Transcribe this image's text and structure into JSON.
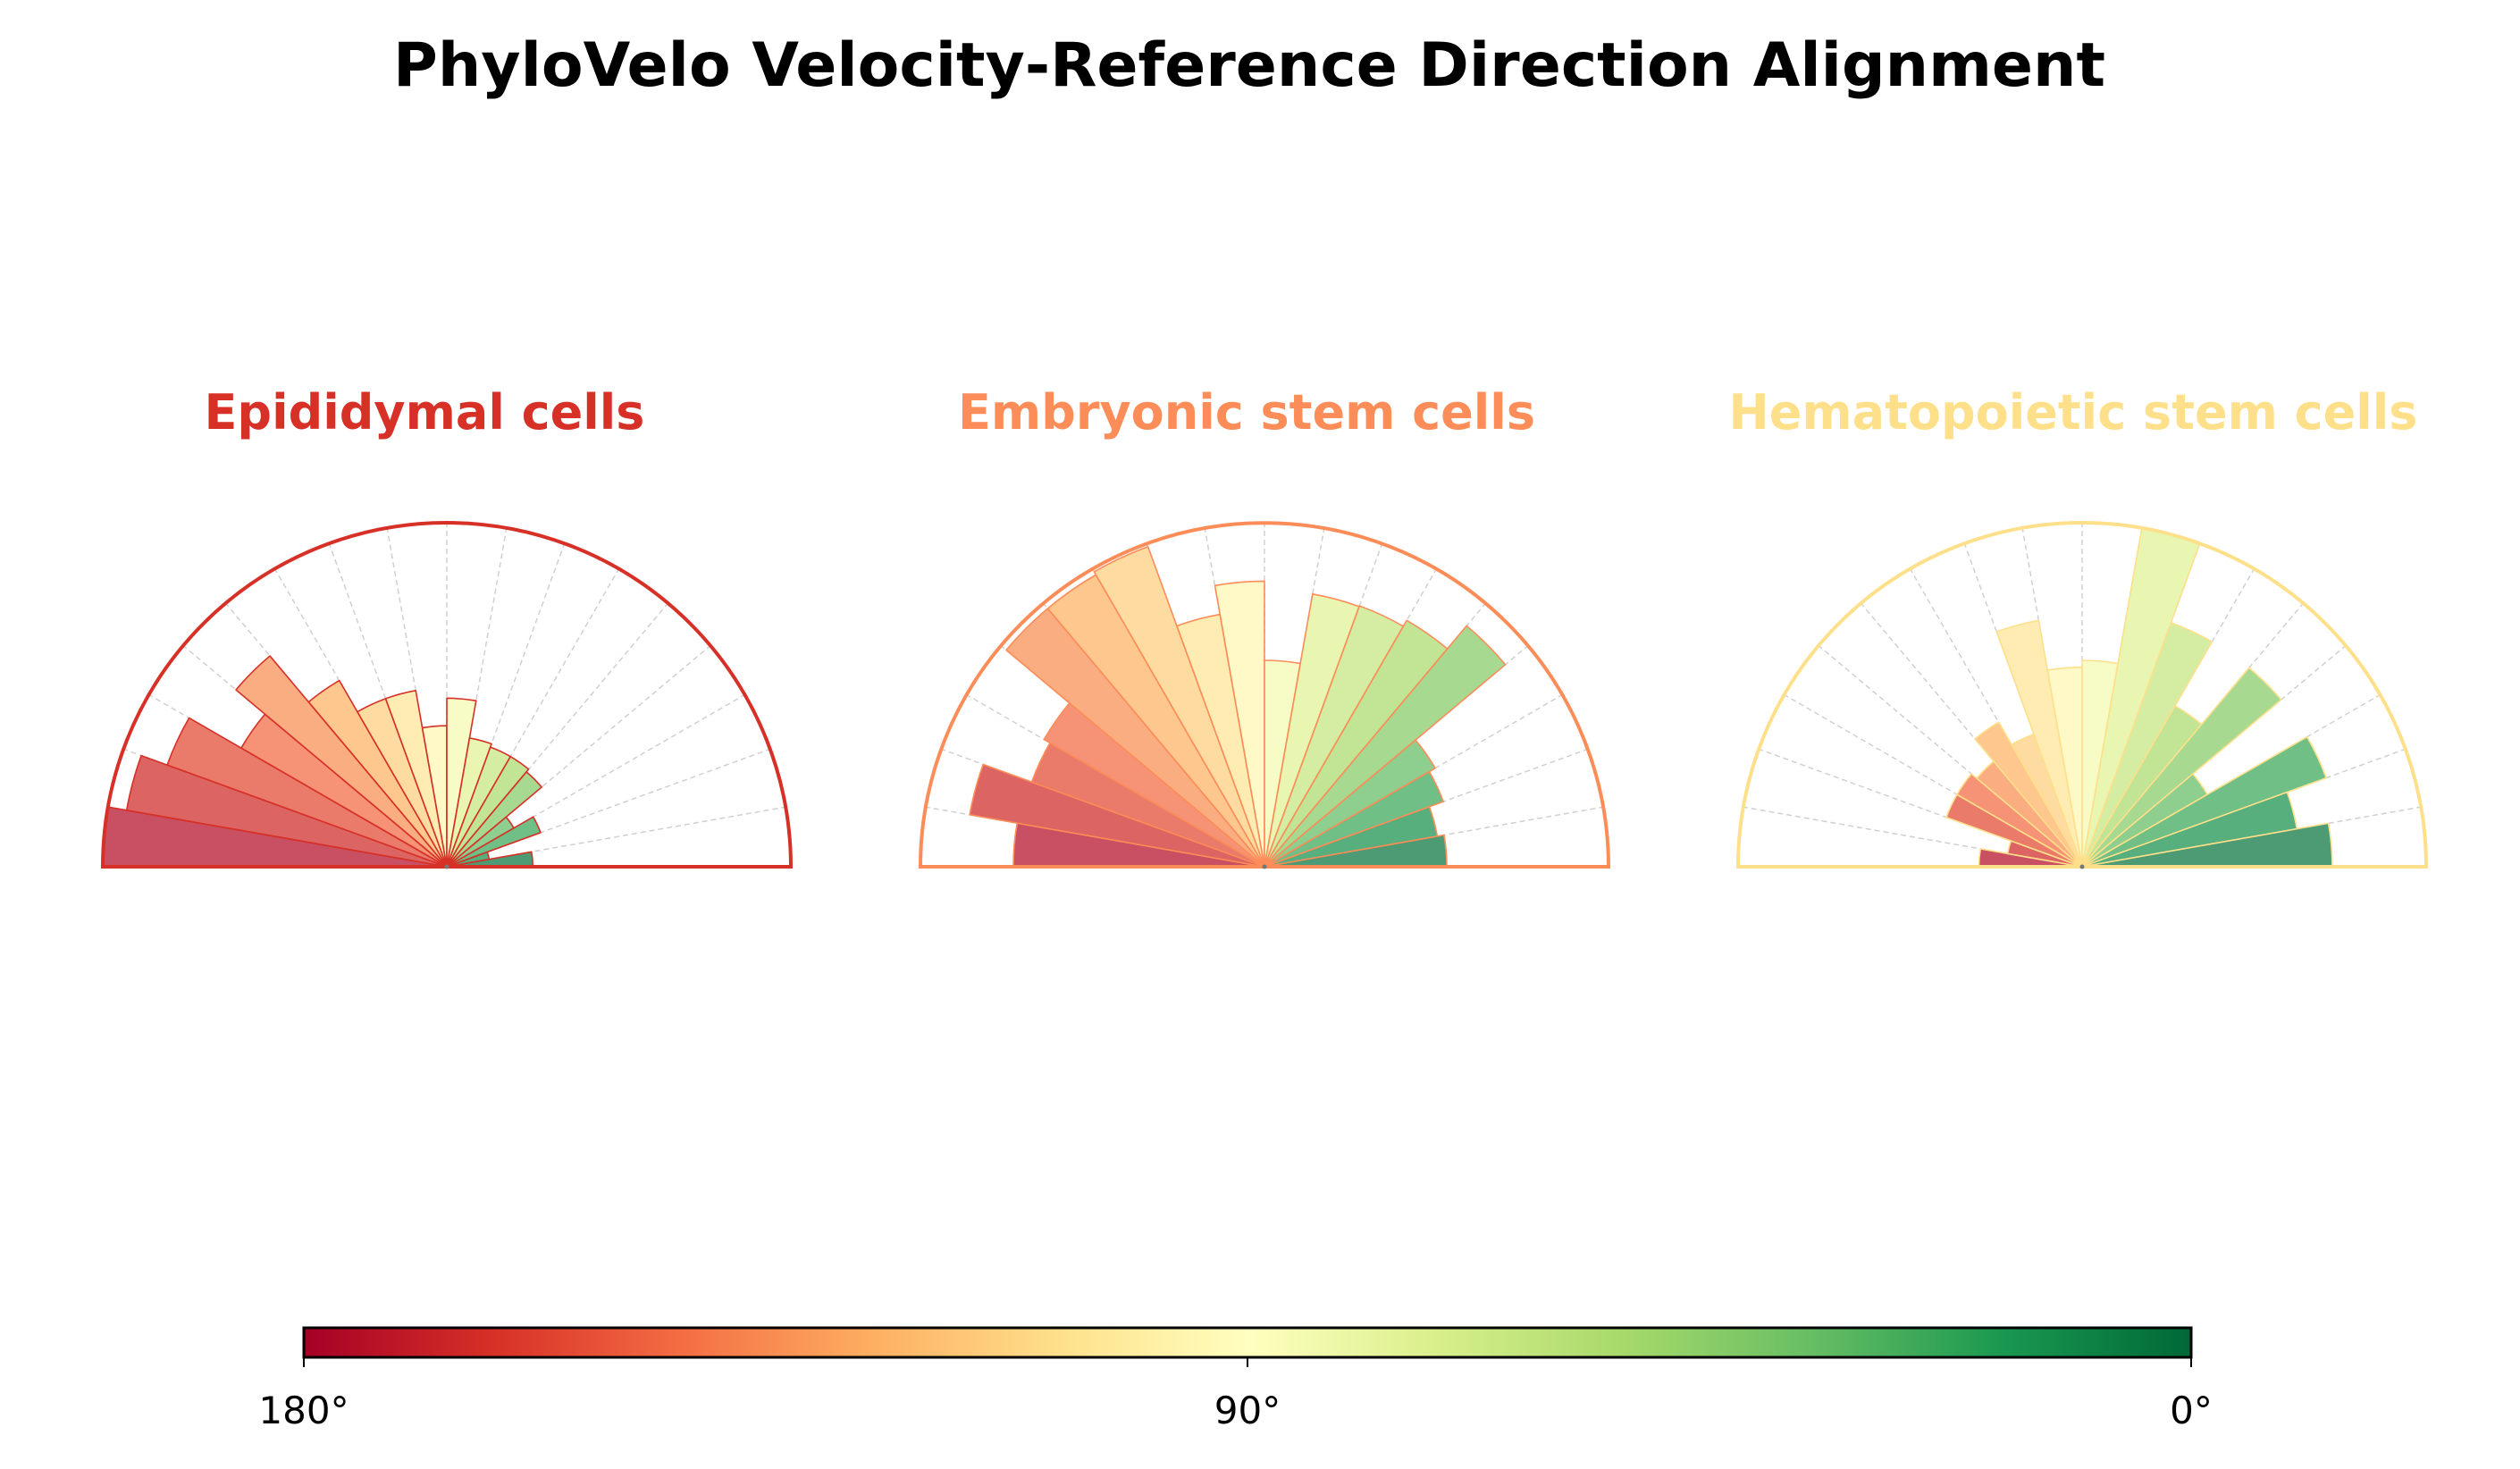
{
  "title": "PhyloVelo Velocity-Reference Direction Alignment",
  "chart_data": [
    {
      "type": "polar-bar",
      "title": "Epididymal cells",
      "title_color": "#d73027",
      "angle_range_deg": [
        0,
        180
      ],
      "bin_width_deg": 10,
      "bin_start_deg": [
        170,
        160,
        150,
        140,
        130,
        120,
        110,
        100,
        90,
        80,
        70,
        60,
        50,
        40,
        30,
        20,
        10,
        0
      ],
      "values": [
        1.0,
        0.945,
        0.865,
        0.69,
        0.8,
        0.625,
        0.52,
        0.52,
        0.41,
        0.49,
        0.38,
        0.37,
        0.37,
        0.36,
        0.225,
        0.29,
        0.125,
        0.25
      ],
      "value_scale": "relative to panel maximum"
    },
    {
      "type": "polar-bar",
      "title": "Embryonic stem cells",
      "title_color": "#fc8d59",
      "angle_range_deg": [
        0,
        180
      ],
      "bin_width_deg": 10,
      "bin_start_deg": [
        170,
        160,
        150,
        140,
        130,
        120,
        110,
        100,
        90,
        80,
        70,
        60,
        50,
        40,
        30,
        20,
        10,
        0
      ],
      "values": [
        0.73,
        0.87,
        0.72,
        0.74,
        0.98,
        0.98,
        0.99,
        0.745,
        0.83,
        0.6,
        0.805,
        0.807,
        0.827,
        0.914,
        0.573,
        0.553,
        0.51,
        0.53
      ],
      "value_scale": "relative to panel maximum"
    },
    {
      "type": "polar-bar",
      "title": "Hematopoietic stem cells",
      "title_color": "#fee08b",
      "angle_range_deg": [
        0,
        180
      ],
      "bin_width_deg": 10,
      "bin_start_deg": [
        170,
        160,
        150,
        140,
        130,
        120,
        110,
        100,
        90,
        80,
        70,
        60,
        50,
        40,
        30,
        20,
        10,
        0
      ],
      "values": [
        0.3,
        0.22,
        0.42,
        0.42,
        0.4,
        0.485,
        0.41,
        0.727,
        0.58,
        0.6,
        1.0,
        0.755,
        0.54,
        0.755,
        0.42,
        0.755,
        0.634,
        0.727
      ],
      "value_scale": "relative to panel maximum"
    }
  ],
  "colorbar": {
    "colormap": "RdYlGn",
    "range_deg": [
      180,
      0
    ],
    "tick_labels": [
      "180°",
      "90°",
      "0°"
    ],
    "stops": [
      "#a50026",
      "#d73027",
      "#f46d43",
      "#fdae61",
      "#fee08b",
      "#ffffbf",
      "#d9ef8b",
      "#a6d96a",
      "#66bd63",
      "#1a9850",
      "#006837"
    ]
  }
}
